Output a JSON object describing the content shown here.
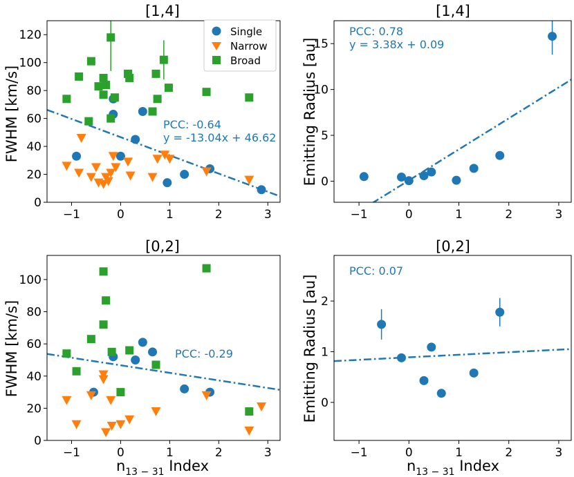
{
  "colors": {
    "single": "#1f77b4",
    "narrow": "#ff7f0e",
    "broad": "#2ca02c",
    "fit": "#1f77b4"
  },
  "legend": {
    "single": "Single",
    "narrow": "Narrow",
    "broad": "Broad"
  },
  "chart_data": [
    {
      "type": "scatter",
      "title": "[1,4]",
      "xlabel": "",
      "ylabel": "FWHM [km/s]",
      "xlim": [
        -1.5,
        3.25
      ],
      "ylim": [
        0,
        130
      ],
      "xticks": [
        -1,
        0,
        1,
        2,
        3
      ],
      "yticks": [
        0,
        20,
        40,
        60,
        80,
        100,
        120
      ],
      "legend_position": "top-right",
      "annotation": [
        "PCC: -0.64",
        "y = -13.04x + 46.62"
      ],
      "fit": {
        "slope": -13.04,
        "intercept": 46.62
      },
      "series": [
        {
          "name": "Single",
          "marker": "circle",
          "points": [
            {
              "x": -0.9,
              "y": 33
            },
            {
              "x": -0.15,
              "y": 63
            },
            {
              "x": -0.15,
              "y": 74
            },
            {
              "x": 0.0,
              "y": 33
            },
            {
              "x": 0.3,
              "y": 45
            },
            {
              "x": 0.45,
              "y": 65
            },
            {
              "x": 0.95,
              "y": 14
            },
            {
              "x": 1.3,
              "y": 20
            },
            {
              "x": 1.82,
              "y": 24
            },
            {
              "x": 2.87,
              "y": 9
            }
          ]
        },
        {
          "name": "Narrow",
          "marker": "triangle-down",
          "points": [
            {
              "x": -1.1,
              "y": 26
            },
            {
              "x": -0.85,
              "y": 21
            },
            {
              "x": -0.8,
              "y": 46
            },
            {
              "x": -0.6,
              "y": 18
            },
            {
              "x": -0.5,
              "y": 25
            },
            {
              "x": -0.45,
              "y": 14
            },
            {
              "x": -0.35,
              "y": 13
            },
            {
              "x": -0.3,
              "y": 18
            },
            {
              "x": -0.25,
              "y": 15
            },
            {
              "x": -0.2,
              "y": 21
            },
            {
              "x": -0.15,
              "y": 33
            },
            {
              "x": -0.1,
              "y": 25
            },
            {
              "x": 0.15,
              "y": 29
            },
            {
              "x": 0.2,
              "y": 19
            },
            {
              "x": 0.65,
              "y": 18
            },
            {
              "x": 0.75,
              "y": 31
            },
            {
              "x": 0.9,
              "y": 34
            },
            {
              "x": 1.0,
              "y": 31
            },
            {
              "x": 1.75,
              "y": 22
            },
            {
              "x": 2.62,
              "y": 16
            }
          ]
        },
        {
          "name": "Broad",
          "marker": "square",
          "points": [
            {
              "x": -1.1,
              "y": 74
            },
            {
              "x": -0.85,
              "y": 90
            },
            {
              "x": -0.65,
              "y": 58
            },
            {
              "x": -0.6,
              "y": 101
            },
            {
              "x": -0.45,
              "y": 83
            },
            {
              "x": -0.35,
              "y": 89
            },
            {
              "x": -0.35,
              "y": 77
            },
            {
              "x": -0.3,
              "y": 84
            },
            {
              "x": -0.2,
              "y": 60
            },
            {
              "x": -0.2,
              "y": 118,
              "err": 24
            },
            {
              "x": -0.12,
              "y": 75
            },
            {
              "x": 0.15,
              "y": 92
            },
            {
              "x": 0.18,
              "y": 89
            },
            {
              "x": 0.65,
              "y": 65
            },
            {
              "x": 0.72,
              "y": 92
            },
            {
              "x": 0.75,
              "y": 74
            },
            {
              "x": 0.88,
              "y": 102,
              "err": 14
            },
            {
              "x": 0.98,
              "y": 82
            },
            {
              "x": 1.75,
              "y": 79
            },
            {
              "x": 2.62,
              "y": 75
            }
          ]
        }
      ]
    },
    {
      "type": "scatter",
      "title": "[1,4]",
      "xlabel": "",
      "ylabel": "Emitting Radius [au]",
      "xlim": [
        -1.5,
        3.25
      ],
      "ylim": [
        -2.3,
        17.5
      ],
      "xticks": [
        -1,
        0,
        1,
        2,
        3
      ],
      "yticks": [
        0,
        5,
        10,
        15
      ],
      "annotation": [
        "PCC: 0.78",
        "y = 3.38x + 0.09"
      ],
      "fit": {
        "slope": 3.38,
        "intercept": 0.09
      },
      "series": [
        {
          "name": "Single",
          "marker": "circle",
          "points": [
            {
              "x": -0.9,
              "y": 0.5
            },
            {
              "x": -0.15,
              "y": 0.45
            },
            {
              "x": 0.0,
              "y": 0.05
            },
            {
              "x": 0.3,
              "y": 0.6
            },
            {
              "x": 0.45,
              "y": 1.0
            },
            {
              "x": 0.95,
              "y": 0.1
            },
            {
              "x": 1.3,
              "y": 1.4
            },
            {
              "x": 1.82,
              "y": 2.8
            },
            {
              "x": 2.87,
              "y": 15.8,
              "err": 2.0
            }
          ]
        }
      ]
    },
    {
      "type": "scatter",
      "title": "[0,2]",
      "xlabel": "n13-31 Index",
      "ylabel": "FWHM [km/s]",
      "xlim": [
        -1.5,
        3.25
      ],
      "ylim": [
        0,
        115
      ],
      "xticks": [
        -1,
        0,
        1,
        2,
        3
      ],
      "yticks": [
        0,
        20,
        40,
        60,
        80,
        100
      ],
      "annotation": [
        "PCC: -0.29"
      ],
      "fit": {
        "slope": -4.7,
        "intercept": 46.7
      },
      "series": [
        {
          "name": "Single",
          "marker": "circle",
          "points": [
            {
              "x": -0.55,
              "y": 30
            },
            {
              "x": -0.15,
              "y": 52
            },
            {
              "x": 0.3,
              "y": 50
            },
            {
              "x": 0.45,
              "y": 61
            },
            {
              "x": 0.65,
              "y": 55
            },
            {
              "x": 1.3,
              "y": 32
            },
            {
              "x": 1.82,
              "y": 30
            }
          ]
        },
        {
          "name": "Narrow",
          "marker": "triangle-down",
          "points": [
            {
              "x": -1.1,
              "y": 25
            },
            {
              "x": -0.9,
              "y": 10
            },
            {
              "x": -0.6,
              "y": 28
            },
            {
              "x": -0.35,
              "y": 41
            },
            {
              "x": -0.35,
              "y": 38
            },
            {
              "x": -0.3,
              "y": 5
            },
            {
              "x": -0.2,
              "y": 25
            },
            {
              "x": -0.18,
              "y": 9
            },
            {
              "x": 0.0,
              "y": 10
            },
            {
              "x": 0.18,
              "y": 13
            },
            {
              "x": 0.72,
              "y": 18
            },
            {
              "x": 1.75,
              "y": 28
            },
            {
              "x": 2.62,
              "y": 6
            },
            {
              "x": 2.87,
              "y": 21
            }
          ]
        },
        {
          "name": "Broad",
          "marker": "square",
          "points": [
            {
              "x": -1.1,
              "y": 54
            },
            {
              "x": -0.9,
              "y": 43
            },
            {
              "x": -0.6,
              "y": 63
            },
            {
              "x": -0.35,
              "y": 105
            },
            {
              "x": -0.35,
              "y": 72
            },
            {
              "x": -0.3,
              "y": 87
            },
            {
              "x": -0.18,
              "y": 55
            },
            {
              "x": 0.0,
              "y": 30
            },
            {
              "x": 0.18,
              "y": 56
            },
            {
              "x": 0.72,
              "y": 47
            },
            {
              "x": 1.75,
              "y": 107
            },
            {
              "x": 2.62,
              "y": 18
            }
          ]
        }
      ]
    },
    {
      "type": "scatter",
      "title": "[0,2]",
      "xlabel": "n13-31 Index",
      "ylabel": "Emitting Radius [au]",
      "xlim": [
        -1.5,
        3.25
      ],
      "ylim": [
        -0.75,
        2.9
      ],
      "xticks": [
        -1,
        0,
        1,
        2,
        3
      ],
      "yticks": [
        0,
        1,
        2
      ],
      "annotation": [
        "PCC: 0.07"
      ],
      "fit": {
        "slope": 0.05,
        "intercept": 0.89
      },
      "series": [
        {
          "name": "Single",
          "marker": "circle",
          "points": [
            {
              "x": -0.55,
              "y": 1.54,
              "err": 0.3
            },
            {
              "x": -0.15,
              "y": 0.88
            },
            {
              "x": 0.3,
              "y": 0.43
            },
            {
              "x": 0.45,
              "y": 1.09
            },
            {
              "x": 0.65,
              "y": 0.18
            },
            {
              "x": 1.3,
              "y": 0.58
            },
            {
              "x": 1.82,
              "y": 1.78,
              "err": 0.28
            }
          ]
        }
      ]
    }
  ]
}
